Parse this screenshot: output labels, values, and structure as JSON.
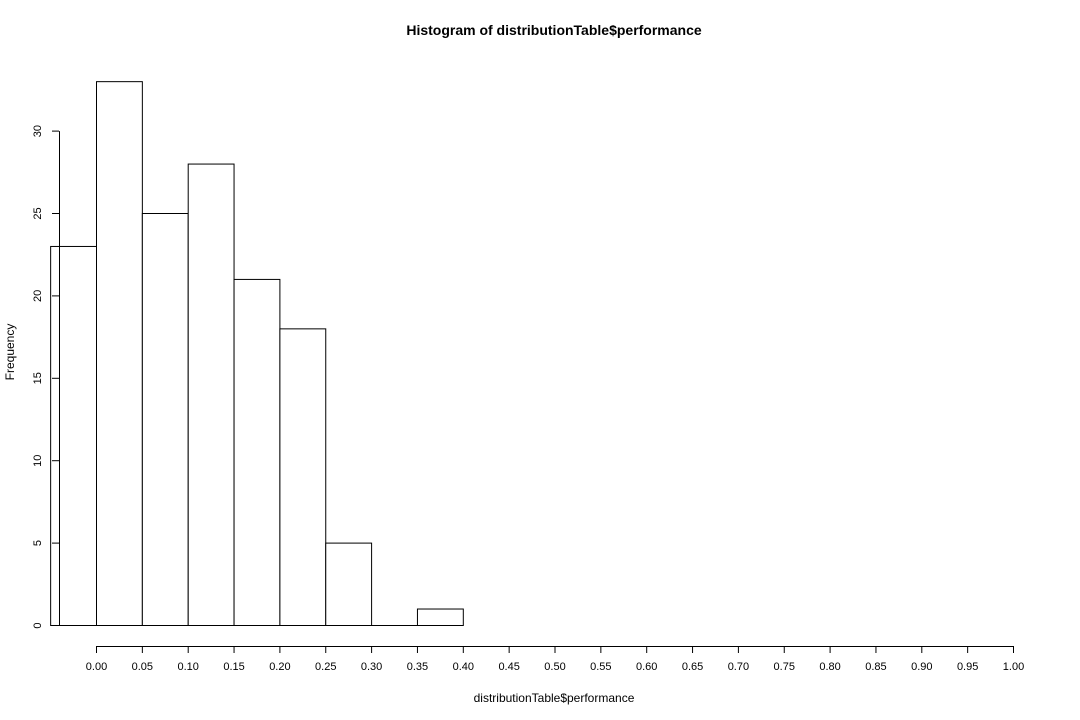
{
  "chart_data": {
    "type": "bar",
    "title": "Histogram of distributionTable$performance",
    "xlabel": "distributionTable$performance",
    "ylabel": "Frequency",
    "bins": [
      {
        "start": -0.05,
        "end": 0.0,
        "count": 23
      },
      {
        "start": 0.0,
        "end": 0.05,
        "count": 33
      },
      {
        "start": 0.05,
        "end": 0.1,
        "count": 25
      },
      {
        "start": 0.1,
        "end": 0.15,
        "count": 28
      },
      {
        "start": 0.15,
        "end": 0.2,
        "count": 21
      },
      {
        "start": 0.2,
        "end": 0.25,
        "count": 18
      },
      {
        "start": 0.25,
        "end": 0.3,
        "count": 5
      },
      {
        "start": 0.3,
        "end": 0.35,
        "count": 0
      },
      {
        "start": 0.35,
        "end": 0.4,
        "count": 1
      }
    ],
    "xlim": [
      -0.05,
      1.0
    ],
    "ylim": [
      0,
      33
    ],
    "x_ticks": [
      "0.00",
      "0.05",
      "0.10",
      "0.15",
      "0.20",
      "0.25",
      "0.30",
      "0.35",
      "0.40",
      "0.45",
      "0.50",
      "0.55",
      "0.60",
      "0.65",
      "0.70",
      "0.75",
      "0.80",
      "0.85",
      "0.90",
      "0.95",
      "1.00"
    ],
    "y_ticks": [
      "0",
      "5",
      "10",
      "15",
      "20",
      "25",
      "30"
    ],
    "grid": false,
    "legend": "none",
    "colors": {
      "bar_fill": "#ffffff",
      "bar_stroke": "#000000"
    }
  }
}
